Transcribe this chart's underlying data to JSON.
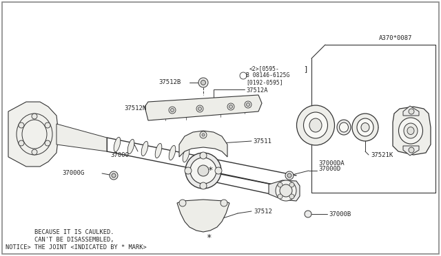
{
  "bg_color": "#ffffff",
  "border_color": "#555555",
  "line_color": "#333333",
  "text_color": "#222222",
  "notice_lines": [
    "NOTICE> THE JOINT <INDICATED BY * MARK>",
    "        CAN'T BE DISASSEMBLED,",
    "        BECAUSE IT IS CAULKED."
  ],
  "figsize": [
    6.4,
    3.72
  ],
  "dpi": 100
}
